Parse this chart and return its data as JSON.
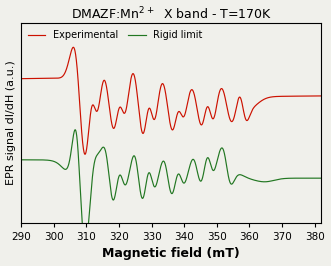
{
  "title": "DMAZF:Mn$^{2+}$  X band - T=170K",
  "xlabel": "Magnetic field (mT)",
  "ylabel": "EPR signal dI/dH (a.u.)",
  "xlim": [
    290,
    382
  ],
  "xticks": [
    290,
    300,
    310,
    320,
    330,
    340,
    350,
    360,
    370,
    380
  ],
  "bg_color": "#f0f0eb",
  "exp_color": "#cc1100",
  "rigid_color": "#227722",
  "legend_exp": "Experimental",
  "legend_rigid": "Rigid limit",
  "title_fontsize": 9,
  "xlabel_fontsize": 9,
  "ylabel_fontsize": 8,
  "tick_fontsize": 7.5
}
